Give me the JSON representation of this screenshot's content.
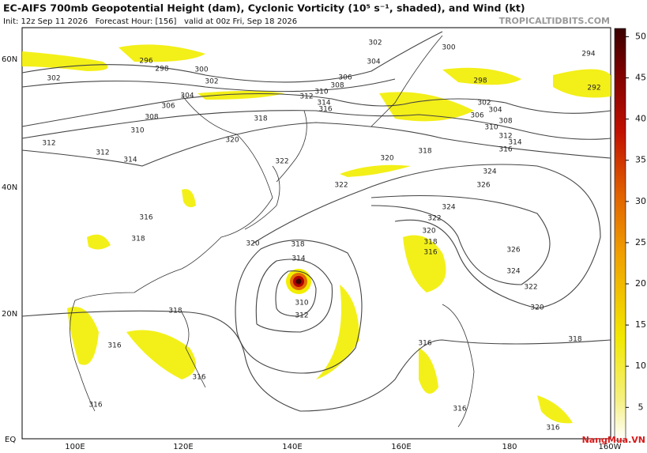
{
  "header": {
    "title": "EC-AIFS 700mb Geopotential Height (dam), Cyclonic Vorticity (10⁵ s⁻¹, shaded), and Wind (kt)",
    "init": "Init: 12z Sep 11 2026   Forecast Hour: [156]   valid at 00z Fri, Sep 18 2026",
    "source": "TROPICALTIDBITS.COM"
  },
  "map": {
    "lat_labels": [
      "60N",
      "40N",
      "20N",
      "EQ"
    ],
    "lon_labels": [
      "100E",
      "120E",
      "140E",
      "160E",
      "180",
      "160W"
    ],
    "contour_labels": [
      "296",
      "298",
      "300",
      "302",
      "302",
      "304",
      "306",
      "308",
      "310",
      "312",
      "312",
      "314",
      "316",
      "318",
      "318",
      "320",
      "322",
      "302",
      "304",
      "306",
      "308",
      "310",
      "312",
      "314",
      "316",
      "300",
      "298",
      "302",
      "304",
      "306",
      "308",
      "310",
      "312",
      "314",
      "316",
      "318",
      "320",
      "322",
      "324",
      "326",
      "324",
      "322",
      "320",
      "318",
      "316",
      "326",
      "324",
      "322",
      "320",
      "318",
      "318",
      "314",
      "310",
      "312",
      "318",
      "320",
      "316",
      "316",
      "316",
      "316",
      "316",
      "316",
      "292",
      "294"
    ]
  },
  "colorbar": {
    "range": [
      1,
      51
    ],
    "ticks": [
      5,
      10,
      15,
      20,
      25,
      30,
      35,
      40,
      45,
      50
    ]
  },
  "watermark": "NangMua.VN"
}
